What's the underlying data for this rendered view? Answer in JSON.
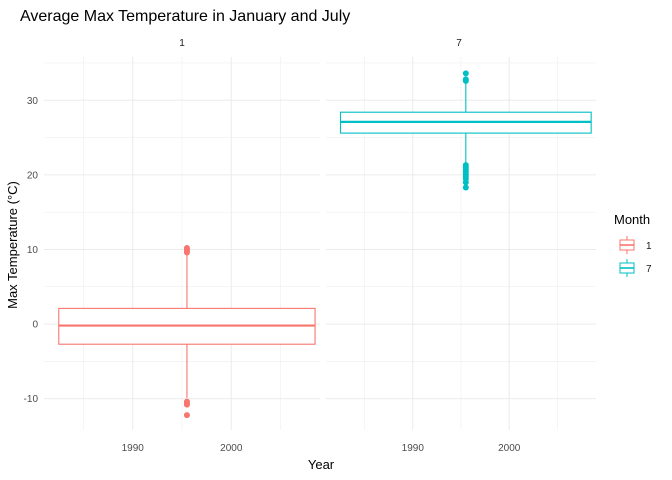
{
  "chart_data": {
    "type": "boxplot",
    "title": "Average Max Temperature in January and July",
    "xlabel": "Year",
    "ylabel": "Max Temperature (°C)",
    "facets": [
      "1",
      "7"
    ],
    "xlim": [
      1981,
      2009
    ],
    "ylim": [
      -14.2,
      35.8
    ],
    "xticks": [
      1990,
      2000
    ],
    "yticks": [
      -10,
      0,
      10,
      20,
      30
    ],
    "grid": true,
    "legend": {
      "title": "Month",
      "position": "right",
      "entries": [
        {
          "label": "1",
          "color": "#F8766D"
        },
        {
          "label": "7",
          "color": "#00BFC4"
        }
      ]
    },
    "boxes": [
      {
        "facet": "1",
        "x_from": 1982.5,
        "x_to": 2008.5,
        "x_center": 1995.5,
        "q1": -2.7,
        "median": -0.2,
        "q3": 2.1,
        "whisker_low": -9.9,
        "whisker_high": 9.3,
        "outliers": [
          9.6,
          9.8,
          10.0,
          10.2,
          -10.4,
          -10.6,
          -10.8,
          -12.2
        ],
        "color": "#F8766D"
      },
      {
        "facet": "7",
        "x_from": 1982.5,
        "x_to": 2008.5,
        "x_center": 1995.5,
        "q1": 25.6,
        "median": 27.1,
        "q3": 28.4,
        "whisker_low": 21.6,
        "whisker_high": 32.3,
        "outliers": [
          32.6,
          32.8,
          33.6,
          21.3,
          21.0,
          20.7,
          20.4,
          20.1,
          19.8,
          19.5,
          19.0,
          18.3
        ],
        "color": "#00BFC4"
      }
    ]
  }
}
